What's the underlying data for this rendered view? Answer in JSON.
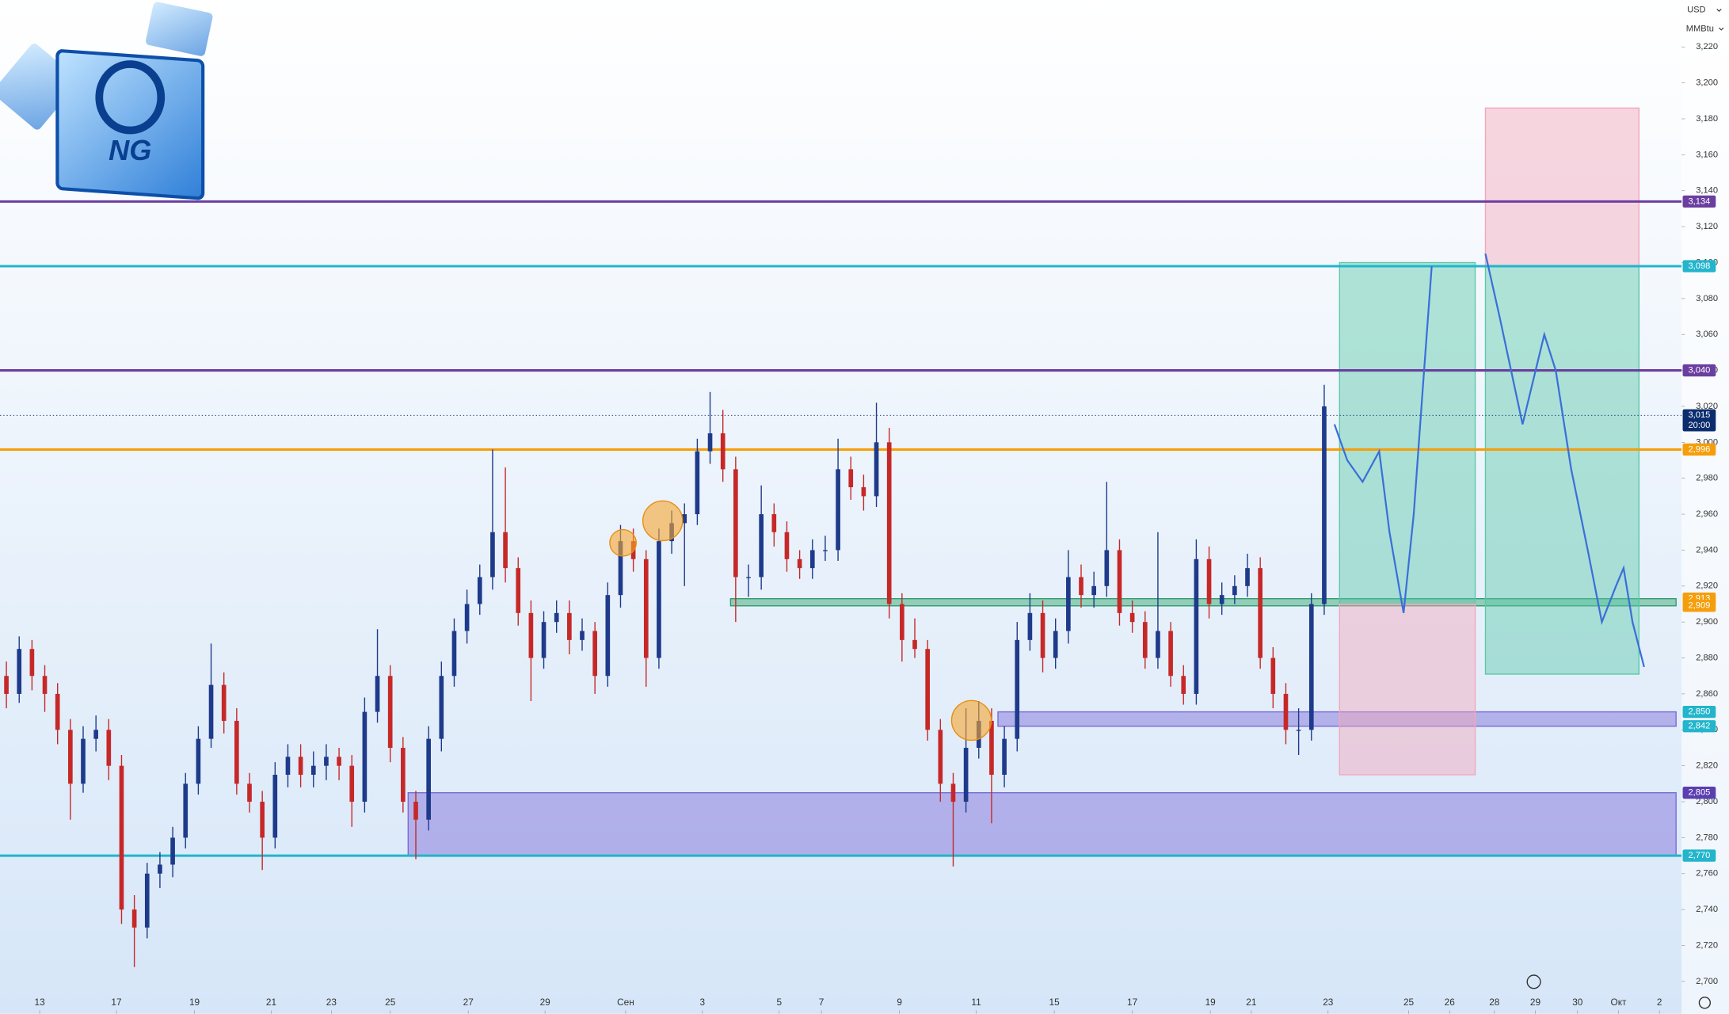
{
  "logo_text": "NG",
  "currency": "USD",
  "unit": "MMBtu",
  "chart_data": {
    "type": "candlestick",
    "xlim": [
      -0.5,
      130.5
    ],
    "xticks": [
      {
        "value": 2.6,
        "label": "13"
      },
      {
        "value": 8.6,
        "label": "17"
      },
      {
        "value": 14.7,
        "label": "19"
      },
      {
        "value": 20.7,
        "label": "21"
      },
      {
        "value": 25.4,
        "label": "23"
      },
      {
        "value": 30.0,
        "label": "25"
      },
      {
        "value": 36.1,
        "label": "27"
      },
      {
        "value": 42.1,
        "label": "29"
      },
      {
        "value": 48.4,
        "label": "Сен"
      },
      {
        "value": 54.4,
        "label": "3"
      },
      {
        "value": 60.4,
        "label": "5"
      },
      {
        "value": 63.7,
        "label": "7"
      },
      {
        "value": 69.8,
        "label": "9"
      },
      {
        "value": 75.8,
        "label": "11"
      },
      {
        "value": 81.9,
        "label": "15"
      },
      {
        "value": 88.0,
        "label": "17"
      },
      {
        "value": 94.1,
        "label": "19"
      },
      {
        "value": 97.3,
        "label": "21"
      },
      {
        "value": 103.3,
        "label": "23"
      },
      {
        "value": 109.6,
        "label": "25"
      },
      {
        "value": 112.8,
        "label": "26"
      },
      {
        "value": 116.3,
        "label": "28"
      },
      {
        "value": 119.5,
        "label": "29"
      },
      {
        "value": 122.8,
        "label": "30"
      },
      {
        "value": 126.0,
        "label": "Окт"
      },
      {
        "value": 129.2,
        "label": "2"
      }
    ],
    "ylim": [
      2682,
      3246
    ],
    "yticks": [
      {
        "value": 2700,
        "label": "2,700"
      },
      {
        "value": 2720,
        "label": "2,720"
      },
      {
        "value": 2740,
        "label": "2,740"
      },
      {
        "value": 2760,
        "label": "2,760"
      },
      {
        "value": 2780,
        "label": "2,780"
      },
      {
        "value": 2800,
        "label": "2,800"
      },
      {
        "value": 2820,
        "label": "2,820"
      },
      {
        "value": 2840,
        "label": "2,840"
      },
      {
        "value": 2860,
        "label": "2,860"
      },
      {
        "value": 2880,
        "label": "2,880"
      },
      {
        "value": 2900,
        "label": "2,900"
      },
      {
        "value": 2920,
        "label": "2,920"
      },
      {
        "value": 2940,
        "label": "2,940"
      },
      {
        "value": 2960,
        "label": "2,960"
      },
      {
        "value": 2980,
        "label": "2,980"
      },
      {
        "value": 3000,
        "label": "3,000"
      },
      {
        "value": 3020,
        "label": "3,020"
      },
      {
        "value": 3040,
        "label": "3,040"
      },
      {
        "value": 3060,
        "label": "3,060"
      },
      {
        "value": 3080,
        "label": "3,080"
      },
      {
        "value": 3100,
        "label": "3,100"
      },
      {
        "value": 3120,
        "label": "3,120"
      },
      {
        "value": 3140,
        "label": "3,140"
      },
      {
        "value": 3160,
        "label": "3,160"
      },
      {
        "value": 3180,
        "label": "3,180"
      },
      {
        "value": 3200,
        "label": "3,200"
      },
      {
        "value": 3220,
        "label": "3,220"
      }
    ],
    "up_color": "#1e3a8a",
    "down_color": "#c62828",
    "ohlc": [
      [
        2870,
        2878,
        2852,
        2860
      ],
      [
        2860,
        2892,
        2855,
        2885
      ],
      [
        2885,
        2890,
        2862,
        2870
      ],
      [
        2870,
        2876,
        2850,
        2860
      ],
      [
        2860,
        2866,
        2832,
        2840
      ],
      [
        2840,
        2846,
        2790,
        2810
      ],
      [
        2810,
        2842,
        2805,
        2835
      ],
      [
        2835,
        2848,
        2828,
        2840
      ],
      [
        2840,
        2846,
        2812,
        2820
      ],
      [
        2820,
        2826,
        2732,
        2740
      ],
      [
        2740,
        2748,
        2708,
        2730
      ],
      [
        2730,
        2766,
        2724,
        2760
      ],
      [
        2760,
        2772,
        2752,
        2765
      ],
      [
        2765,
        2786,
        2758,
        2780
      ],
      [
        2780,
        2816,
        2774,
        2810
      ],
      [
        2810,
        2842,
        2804,
        2835
      ],
      [
        2835,
        2888,
        2830,
        2865
      ],
      [
        2865,
        2872,
        2838,
        2845
      ],
      [
        2845,
        2852,
        2804,
        2810
      ],
      [
        2810,
        2816,
        2794,
        2800
      ],
      [
        2800,
        2806,
        2762,
        2780
      ],
      [
        2780,
        2822,
        2774,
        2815
      ],
      [
        2815,
        2832,
        2808,
        2825
      ],
      [
        2825,
        2832,
        2808,
        2815
      ],
      [
        2815,
        2828,
        2808,
        2820
      ],
      [
        2820,
        2832,
        2812,
        2825
      ],
      [
        2825,
        2830,
        2812,
        2820
      ],
      [
        2820,
        2826,
        2786,
        2800
      ],
      [
        2800,
        2858,
        2794,
        2850
      ],
      [
        2850,
        2896,
        2844,
        2870
      ],
      [
        2870,
        2876,
        2822,
        2830
      ],
      [
        2830,
        2836,
        2794,
        2800
      ],
      [
        2800,
        2806,
        2768,
        2790
      ],
      [
        2790,
        2842,
        2784,
        2835
      ],
      [
        2835,
        2878,
        2828,
        2870
      ],
      [
        2870,
        2902,
        2864,
        2895
      ],
      [
        2895,
        2918,
        2888,
        2910
      ],
      [
        2910,
        2932,
        2904,
        2925
      ],
      [
        2925,
        2996,
        2918,
        2950
      ],
      [
        2950,
        2986,
        2922,
        2930
      ],
      [
        2930,
        2936,
        2898,
        2905
      ],
      [
        2905,
        2912,
        2856,
        2880
      ],
      [
        2880,
        2906,
        2874,
        2900
      ],
      [
        2900,
        2912,
        2894,
        2905
      ],
      [
        2905,
        2912,
        2882,
        2890
      ],
      [
        2890,
        2902,
        2884,
        2895
      ],
      [
        2895,
        2900,
        2860,
        2870
      ],
      [
        2870,
        2922,
        2864,
        2915
      ],
      [
        2915,
        2954,
        2908,
        2945
      ],
      [
        2945,
        2952,
        2928,
        2935
      ],
      [
        2935,
        2940,
        2864,
        2880
      ],
      [
        2880,
        2952,
        2874,
        2945
      ],
      [
        2945,
        2962,
        2938,
        2955
      ],
      [
        2955,
        2966,
        2920,
        2960
      ],
      [
        2960,
        3002,
        2954,
        2995
      ],
      [
        2995,
        3028,
        2988,
        3005
      ],
      [
        3005,
        3018,
        2978,
        2985
      ],
      [
        2985,
        2992,
        2900,
        2925
      ],
      [
        2925,
        2932,
        2914,
        2925
      ],
      [
        2925,
        2976,
        2918,
        2960
      ],
      [
        2960,
        2966,
        2942,
        2950
      ],
      [
        2950,
        2956,
        2928,
        2935
      ],
      [
        2935,
        2940,
        2924,
        2930
      ],
      [
        2930,
        2946,
        2924,
        2940
      ],
      [
        2940,
        2948,
        2934,
        2940
      ],
      [
        2940,
        3002,
        2934,
        2985
      ],
      [
        2985,
        2992,
        2968,
        2975
      ],
      [
        2975,
        2982,
        2962,
        2970
      ],
      [
        2970,
        3022,
        2964,
        3000
      ],
      [
        3000,
        3008,
        2902,
        2910
      ],
      [
        2910,
        2916,
        2878,
        2890
      ],
      [
        2890,
        2902,
        2880,
        2885
      ],
      [
        2885,
        2890,
        2834,
        2840
      ],
      [
        2840,
        2846,
        2800,
        2810
      ],
      [
        2810,
        2816,
        2764,
        2800
      ],
      [
        2800,
        2852,
        2794,
        2830
      ],
      [
        2830,
        2856,
        2824,
        2845
      ],
      [
        2845,
        2852,
        2788,
        2815
      ],
      [
        2815,
        2842,
        2808,
        2835
      ],
      [
        2835,
        2900,
        2828,
        2890
      ],
      [
        2890,
        2916,
        2884,
        2905
      ],
      [
        2905,
        2912,
        2872,
        2880
      ],
      [
        2880,
        2902,
        2874,
        2895
      ],
      [
        2895,
        2940,
        2888,
        2925
      ],
      [
        2925,
        2932,
        2908,
        2915
      ],
      [
        2915,
        2928,
        2908,
        2920
      ],
      [
        2920,
        2978,
        2914,
        2940
      ],
      [
        2940,
        2946,
        2898,
        2905
      ],
      [
        2905,
        2912,
        2894,
        2900
      ],
      [
        2900,
        2906,
        2874,
        2880
      ],
      [
        2880,
        2950,
        2874,
        2895
      ],
      [
        2895,
        2900,
        2864,
        2870
      ],
      [
        2870,
        2876,
        2854,
        2860
      ],
      [
        2860,
        2946,
        2854,
        2935
      ],
      [
        2935,
        2942,
        2902,
        2910
      ],
      [
        2910,
        2922,
        2904,
        2915
      ],
      [
        2915,
        2926,
        2910,
        2920
      ],
      [
        2920,
        2938,
        2914,
        2930
      ],
      [
        2930,
        2936,
        2874,
        2880
      ],
      [
        2880,
        2886,
        2852,
        2860
      ],
      [
        2860,
        2866,
        2832,
        2840
      ],
      [
        2840,
        2852,
        2826,
        2840
      ],
      [
        2840,
        2916,
        2834,
        2910
      ],
      [
        2910,
        3032,
        2904,
        3020
      ]
    ],
    "projection": {
      "color": "#3b6fd8",
      "x": [
        103.8,
        104.8,
        106.0,
        107.3,
        108.1,
        109.2,
        110.0,
        110.7,
        111.4,
        null,
        115.6,
        116.7,
        118.5,
        120.2,
        121.1,
        122.3,
        123.6,
        124.7,
        125.8,
        126.4,
        127.1,
        128.0
      ],
      "values": [
        3010,
        2990,
        2978,
        2995,
        2950,
        2905,
        2960,
        3030,
        3098,
        null,
        3105,
        3070,
        3010,
        3060,
        3040,
        2985,
        2940,
        2900,
        2920,
        2930,
        2900,
        2875
      ]
    },
    "zones": [
      {
        "from": 2805,
        "to": 2770,
        "x": [
          31.4,
          130.5
        ],
        "color": "#7b68d6"
      },
      {
        "from": 2850,
        "to": 2842,
        "x": [
          77.5,
          130.5
        ],
        "color": "#7b68d6"
      },
      {
        "from": 2913,
        "to": 2909,
        "x": [
          56.6,
          130.5
        ],
        "color": "#2e9e6b"
      },
      {
        "from": 3100,
        "to": 2910,
        "x": [
          104.2,
          114.8
        ],
        "color": "#5cc8a8"
      },
      {
        "from": 2910,
        "to": 2815,
        "x": [
          104.2,
          114.8
        ],
        "color": "#f2a7bb"
      },
      {
        "from": 3186,
        "to": 3098,
        "x": [
          115.6,
          127.6
        ],
        "color": "#f2a7bb"
      },
      {
        "from": 3098,
        "to": 2871,
        "x": [
          115.6,
          127.6
        ],
        "color": "#5cc8a8"
      }
    ],
    "levels": [
      {
        "value": 3134,
        "label": "3,134",
        "color": "#6b3fa0",
        "line": true
      },
      {
        "value": 3098,
        "label": "3,098",
        "color": "#22b5cc",
        "line": true
      },
      {
        "value": 3040,
        "label": "3,040",
        "color": "#6b3fa0",
        "line": true
      },
      {
        "value": 3015,
        "label": "3,015",
        "time": "20:00",
        "color": "#0b2d6e",
        "line": true,
        "dotted": true
      },
      {
        "value": 2996,
        "label": "2,996",
        "color": "#f59e0b",
        "line": true
      },
      {
        "value": 2913,
        "label": "2,913",
        "color": "#f59e0b",
        "line": false
      },
      {
        "value": 2909,
        "label": "2,909",
        "color": "#f59e0b",
        "line": false
      },
      {
        "value": 2850,
        "label": "2,850",
        "color": "#22b5cc",
        "line": false
      },
      {
        "value": 2842,
        "label": "2,842",
        "color": "#22b5cc",
        "line": false
      },
      {
        "value": 2805,
        "label": "2,805",
        "color": "#5b3fb0",
        "line": false
      },
      {
        "value": 2770,
        "label": "2,770",
        "color": "#22b5cc",
        "line": true
      }
    ]
  }
}
